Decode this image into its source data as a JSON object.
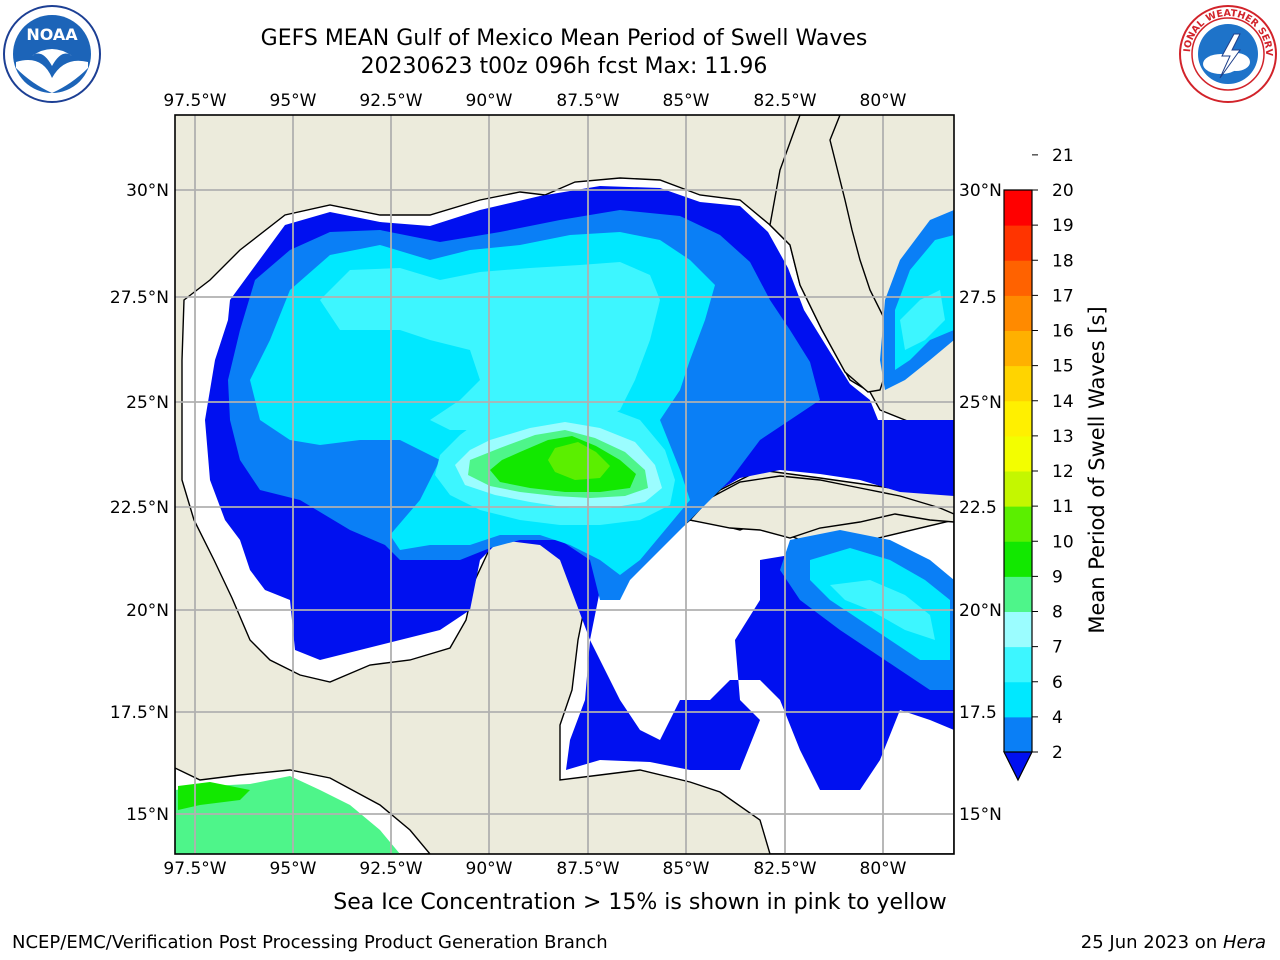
{
  "title": {
    "line1": "GEFS MEAN Gulf of Mexico Mean Period of Swell Waves",
    "line2": "20230623 t00z 096h fcst   Max: 11.96"
  },
  "map": {
    "lon_labels": [
      "97.5°W",
      "95°W",
      "92.5°W",
      "90°W",
      "87.5°W",
      "85°W",
      "82.5°W",
      "80°W"
    ],
    "lat_labels_left": [
      "30°N",
      "27.5°N",
      "25°N",
      "22.5°N",
      "20°N",
      "17.5°N",
      "15°N"
    ],
    "lat_labels_right": [
      "30°N",
      "27.5",
      "25°N",
      "22.5",
      "20°N",
      "17.5",
      "15°N"
    ],
    "colors": {
      "land": "#ecebdc",
      "ocean_no_data": "#ffffff",
      "grid": "#b0b0b0",
      "coastline": "#000000"
    }
  },
  "colorbar": {
    "label": "Mean Period of Swell Waves [s]",
    "ticks": [
      "2",
      "4",
      "6",
      "7",
      "8",
      "9",
      "10",
      "11",
      "12",
      "13",
      "14",
      "15",
      "16",
      "17",
      "18",
      "19",
      "20",
      "21"
    ],
    "colors": [
      "#0a7ff6",
      "#00e8ff",
      "#3df6ff",
      "#9bfdff",
      "#4ef58a",
      "#12e800",
      "#5bef00",
      "#c4f700",
      "#f3fe00",
      "#fff000",
      "#ffd400",
      "#ffb000",
      "#ff8a00",
      "#ff6200",
      "#ff3400",
      "#ff0000"
    ],
    "under_color": "#0010f0"
  },
  "footnote": "Sea Ice Concentration > 15% is shown in pink to yellow",
  "credits": {
    "left": "NCEP/EMC/Verification Post Processing Product Generation Branch",
    "right_prefix": "25 Jun 2023 on ",
    "right_machine": "Hera"
  },
  "logos": {
    "noaa": {
      "text": "NOAA"
    },
    "nws": {
      "text": "NATIONAL WEATHER SERVICE"
    }
  }
}
